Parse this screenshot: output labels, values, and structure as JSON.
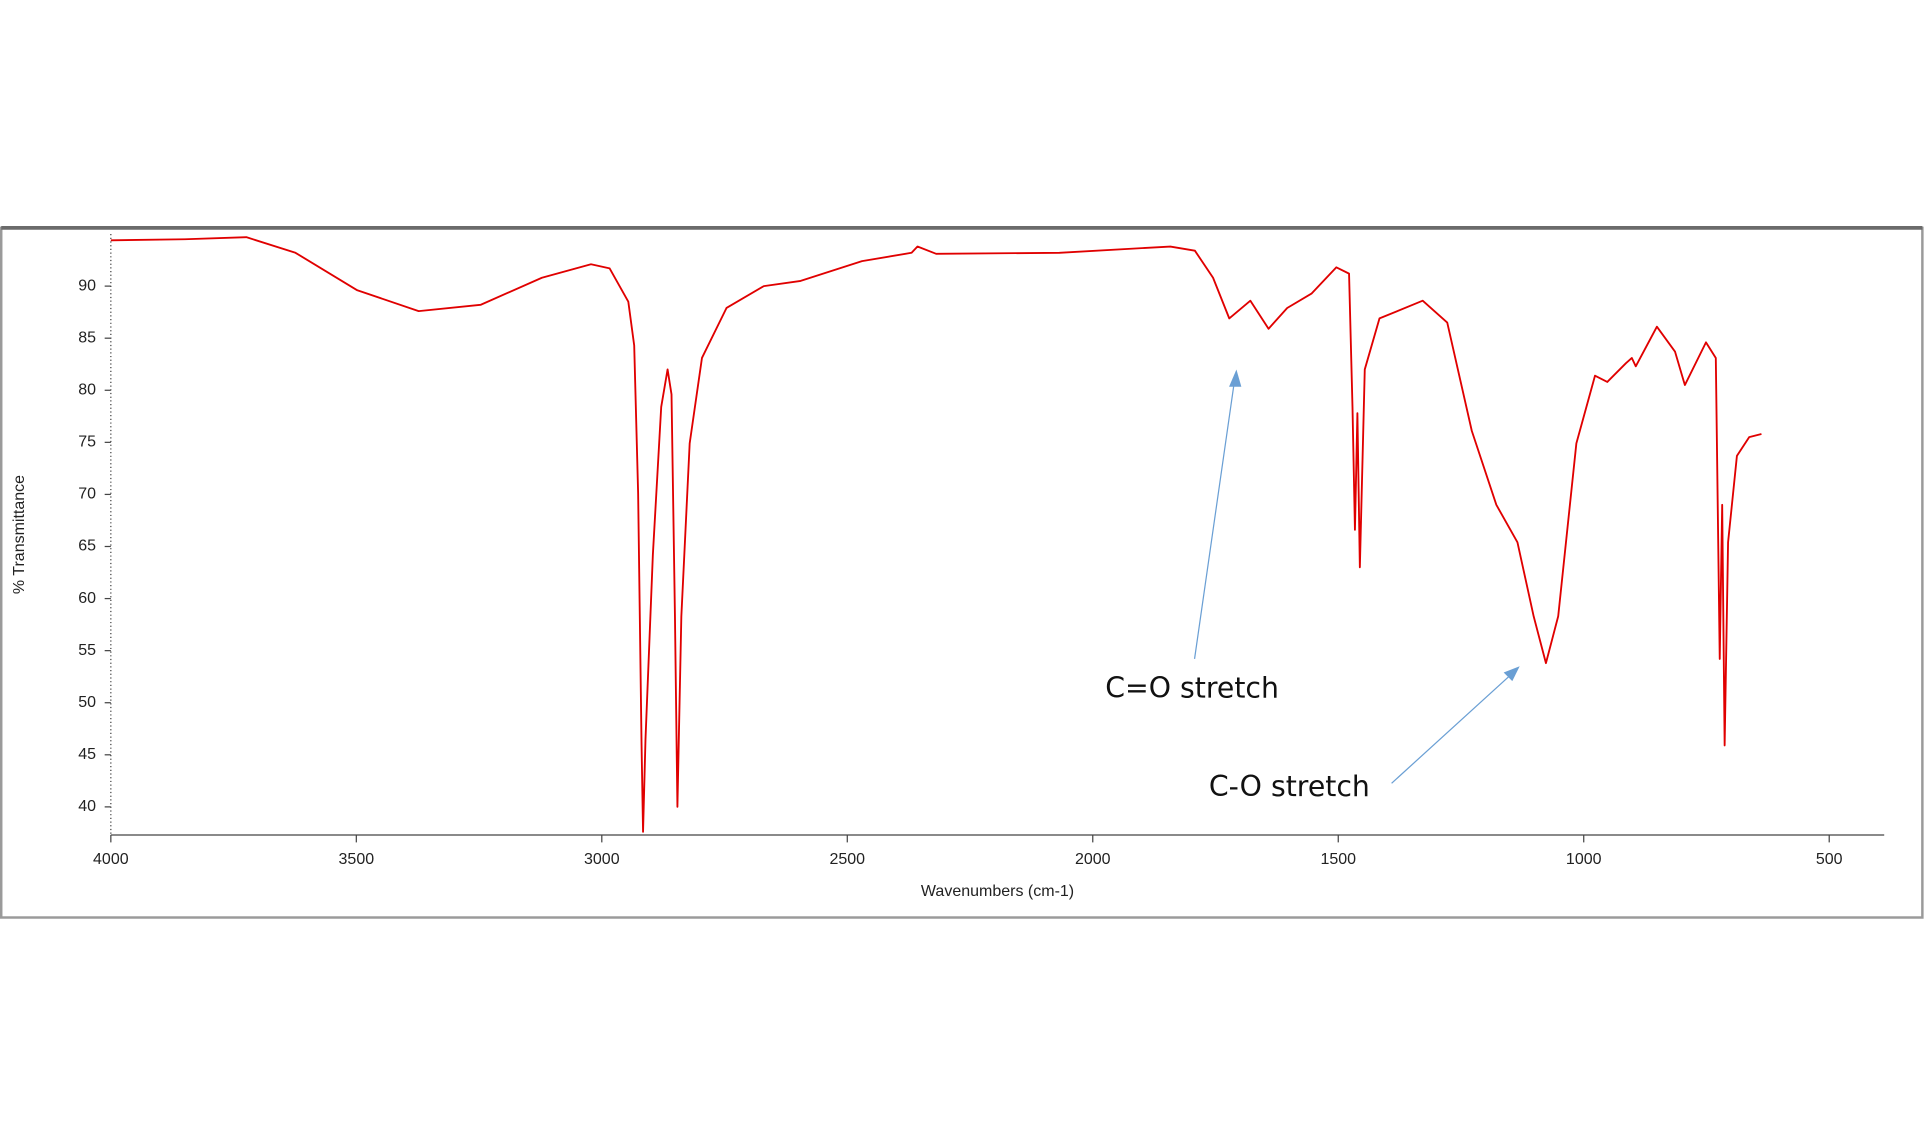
{
  "chart_data": {
    "type": "line",
    "xlabel": "Wavenumbers (cm-1)",
    "ylabel": "% Transmittance",
    "x": [
      4000,
      3849,
      3724,
      3624,
      3498,
      3373,
      3247,
      3122,
      3022,
      2984,
      2946,
      2934,
      2926,
      2919,
      2916,
      2911,
      2896,
      2879,
      2866,
      2858,
      2851,
      2846,
      2838,
      2821,
      2796,
      2746,
      2670,
      2595,
      2470,
      2369,
      2357,
      2319,
      2068,
      1842,
      1792,
      1755,
      1722,
      1679,
      1642,
      1604,
      1554,
      1504,
      1478,
      1471,
      1466,
      1461,
      1456,
      1446,
      1416,
      1328,
      1278,
      1228,
      1178,
      1135,
      1102,
      1077,
      1052,
      1015,
      977,
      952,
      914,
      902,
      894,
      851,
      814,
      794,
      751,
      731,
      723,
      718,
      713,
      706,
      688,
      663,
      638
    ],
    "series": [
      {
        "color": "#e00000",
        "values": [
          94.4,
          94.5,
          94.7,
          93.2,
          89.6,
          87.6,
          88.2,
          90.8,
          92.1,
          91.7,
          88.5,
          84.3,
          70.1,
          45.9,
          37.6,
          46.5,
          64.2,
          78.4,
          82.0,
          79.6,
          58.3,
          40.0,
          58.3,
          74.9,
          83.1,
          87.9,
          90.0,
          90.5,
          92.4,
          93.2,
          93.8,
          93.1,
          93.2,
          93.8,
          93.4,
          90.8,
          86.9,
          88.6,
          85.9,
          87.9,
          89.3,
          91.8,
          91.2,
          78.4,
          66.6,
          77.8,
          63.0,
          82.0,
          86.9,
          88.6,
          86.5,
          76.1,
          69.0,
          65.4,
          58.3,
          53.8,
          58.3,
          74.9,
          81.4,
          80.8,
          82.6,
          83.1,
          82.3,
          86.1,
          83.7,
          80.5,
          84.6,
          83.1,
          54.2,
          69.0,
          45.9,
          65.4,
          73.7,
          75.5,
          75.8
        ]
      }
    ],
    "xlim": [
      4000,
      388
    ],
    "ylim": [
      37.3,
      95
    ],
    "xticks": [
      4000,
      3500,
      3000,
      2500,
      2000,
      1500,
      1000,
      500
    ],
    "yticks": [
      40,
      45,
      50,
      55,
      60,
      65,
      70,
      75,
      80,
      85,
      90
    ],
    "annotations": [
      "C=O stretch",
      "C-O stretch"
    ]
  }
}
